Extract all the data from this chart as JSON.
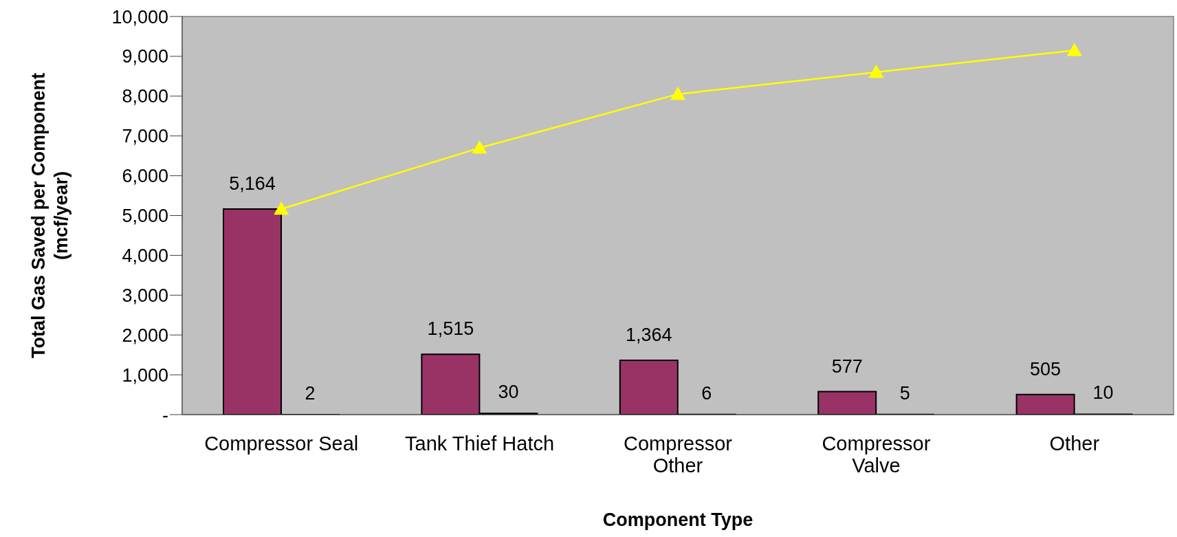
{
  "chart_data": {
    "type": "bar",
    "xlabel": "Component Type",
    "ylabel": "Total Gas Saved per Component (mcf/year)",
    "categories": [
      "Compressor Seal",
      "Tank Thief Hatch",
      "Compressor Other",
      "Compressor Valve",
      "Other"
    ],
    "series": [
      {
        "color": "#993366",
        "values": [
          5164,
          1515,
          1364,
          577,
          505
        ],
        "value_labels": [
          "5,164",
          "1,515",
          "1,364",
          "577",
          "505"
        ]
      },
      {
        "color": "#000000",
        "values": [
          2,
          30,
          6,
          5,
          10
        ],
        "value_labels": [
          "2",
          "30",
          "6",
          "5",
          "10"
        ]
      },
      {
        "type": "line",
        "color": "#ffff00",
        "marker": "triangle",
        "values": [
          5164,
          6700,
          8050,
          8600,
          9150
        ]
      }
    ],
    "ylim": [
      0,
      10000
    ],
    "yticks": [
      {
        "value": 0,
        "label": "-"
      },
      {
        "value": 1000,
        "label": "1,000"
      },
      {
        "value": 2000,
        "label": "2,000"
      },
      {
        "value": 3000,
        "label": "3,000"
      },
      {
        "value": 4000,
        "label": "4,000"
      },
      {
        "value": 5000,
        "label": "5,000"
      },
      {
        "value": 6000,
        "label": "6,000"
      },
      {
        "value": 7000,
        "label": "7,000"
      },
      {
        "value": 8000,
        "label": "8,000"
      },
      {
        "value": 9000,
        "label": "9,000"
      },
      {
        "value": 10000,
        "label": "10,000"
      }
    ],
    "grid": false,
    "legend": false
  }
}
